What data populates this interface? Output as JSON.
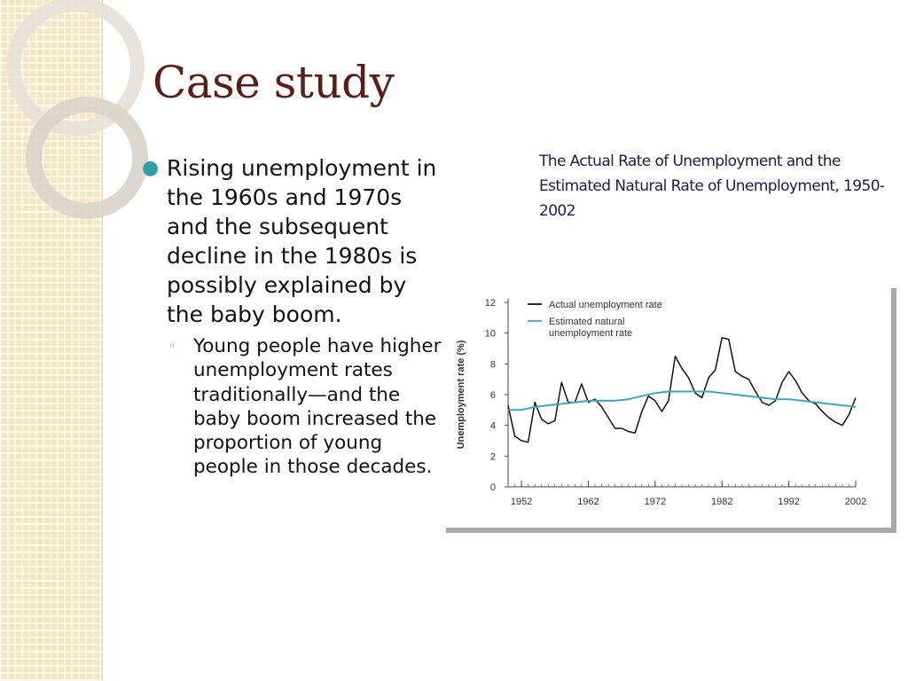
{
  "slide": {
    "title": "Case study",
    "bullet": "Rising unemployment in the 1960s and 1970s and the subsequent decline in the 1980s is possibly explained by the baby boom.",
    "sub_bullet": "Young people have higher unemployment rates traditionally—and the baby boom increased the proportion of young people in those decades.",
    "chart_title": "The Actual Rate of Unemployment and the Estimated Natural Rate of Unemployment, 1950-2002"
  },
  "colors": {
    "title": "#5a1e16",
    "bullet_marker": "#2f9eaa",
    "chart_title": "#1b1b4a",
    "actual_series": "#111111",
    "natural_series": "#3ba7c4"
  },
  "chart_data": {
    "type": "line",
    "title": "",
    "xlabel": "",
    "ylabel": "Unemployment rate (%)",
    "xlim": [
      1950,
      2002
    ],
    "ylim": [
      0,
      12
    ],
    "xticks": [
      1952,
      1962,
      1972,
      1982,
      1992,
      2002
    ],
    "yticks": [
      0,
      2,
      4,
      6,
      8,
      10,
      12
    ],
    "grid": false,
    "legend": "top-left",
    "series": [
      {
        "name": "Actual unemployment rate",
        "color": "#111111",
        "x": [
          1950,
          1951,
          1952,
          1953,
          1954,
          1955,
          1956,
          1957,
          1958,
          1959,
          1960,
          1961,
          1962,
          1963,
          1964,
          1965,
          1966,
          1967,
          1968,
          1969,
          1970,
          1971,
          1972,
          1973,
          1974,
          1975,
          1976,
          1977,
          1978,
          1979,
          1980,
          1981,
          1982,
          1983,
          1984,
          1985,
          1986,
          1987,
          1988,
          1989,
          1990,
          1991,
          1992,
          1993,
          1994,
          1995,
          1996,
          1997,
          1998,
          1999,
          2000,
          2001,
          2002
        ],
        "values": [
          5.3,
          3.3,
          3.0,
          2.9,
          5.5,
          4.4,
          4.1,
          4.3,
          6.8,
          5.5,
          5.5,
          6.7,
          5.5,
          5.7,
          5.2,
          4.5,
          3.8,
          3.8,
          3.6,
          3.5,
          4.9,
          5.9,
          5.6,
          4.9,
          5.6,
          8.5,
          7.7,
          7.1,
          6.1,
          5.8,
          7.1,
          7.6,
          9.7,
          9.6,
          7.5,
          7.2,
          7.0,
          6.2,
          5.5,
          5.3,
          5.6,
          6.8,
          7.5,
          6.9,
          6.1,
          5.6,
          5.4,
          4.9,
          4.5,
          4.2,
          4.0,
          4.7,
          5.8
        ]
      },
      {
        "name": "Estimated natural unemployment rate",
        "color": "#3ba7c4",
        "x": [
          1950,
          1952,
          1954,
          1956,
          1958,
          1960,
          1962,
          1964,
          1966,
          1968,
          1970,
          1972,
          1974,
          1976,
          1978,
          1980,
          1982,
          1984,
          1986,
          1988,
          1990,
          1992,
          1994,
          1996,
          1998,
          2000,
          2002
        ],
        "values": [
          5.0,
          5.0,
          5.2,
          5.3,
          5.4,
          5.5,
          5.6,
          5.6,
          5.6,
          5.7,
          5.9,
          6.1,
          6.2,
          6.2,
          6.2,
          6.2,
          6.1,
          6.0,
          5.9,
          5.8,
          5.7,
          5.7,
          5.6,
          5.5,
          5.4,
          5.3,
          5.2
        ]
      }
    ]
  }
}
